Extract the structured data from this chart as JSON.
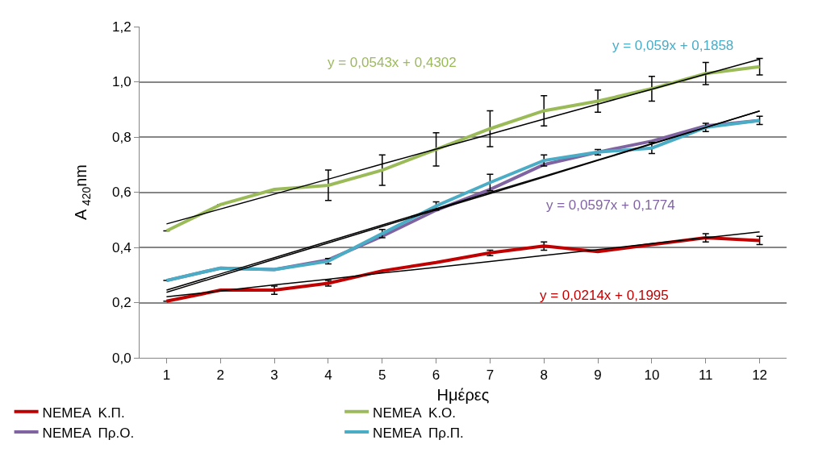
{
  "chart_data": {
    "type": "line",
    "xlabel": "Ημέρες",
    "ylabel": "A $_{420}$nm",
    "x": [
      1,
      2,
      3,
      4,
      5,
      6,
      7,
      8,
      9,
      10,
      11,
      12
    ],
    "xlim": [
      0.5,
      12.5
    ],
    "xticks": [
      1,
      2,
      3,
      4,
      5,
      6,
      7,
      8,
      9,
      10,
      11,
      12
    ],
    "ylim": [
      0,
      1.2
    ],
    "yticks": [
      {
        "value": 0,
        "label": "0,0"
      },
      {
        "value": 0.2,
        "label": "0,2"
      },
      {
        "value": 0.4,
        "label": "0,4"
      },
      {
        "value": 0.6,
        "label": "0,6"
      },
      {
        "value": 0.8,
        "label": "0,8"
      },
      {
        "value": 1.0,
        "label": "1,0"
      },
      {
        "value": 1.2,
        "label": "1,2"
      }
    ],
    "grid": "y",
    "legend": "bottom left",
    "series": [
      {
        "name": "NEMEA  Κ.Π.",
        "color": "#c00000",
        "values": [
          0.205,
          0.245,
          0.245,
          0.27,
          0.315,
          0.345,
          0.38,
          0.405,
          0.385,
          0.41,
          0.435,
          0.425
        ],
        "errors": [
          null,
          null,
          0.015,
          0.01,
          null,
          null,
          0.01,
          0.015,
          null,
          null,
          0.015,
          0.015
        ]
      },
      {
        "name": "NEMEA  Κ.Ο.",
        "color": "#9bbb59",
        "values": [
          0.46,
          0.555,
          0.61,
          0.625,
          0.68,
          0.755,
          0.83,
          0.895,
          0.93,
          0.975,
          1.03,
          1.055
        ],
        "errors": [
          null,
          null,
          null,
          0.055,
          0.055,
          0.06,
          0.065,
          0.055,
          0.04,
          0.045,
          0.04,
          0.03
        ]
      },
      {
        "name": "NEMEA  Πρ.Ο.",
        "color": "#8064a2",
        "values": [
          0.28,
          0.325,
          0.32,
          0.355,
          0.44,
          0.535,
          0.61,
          0.7,
          0.745,
          0.785,
          0.84,
          0.86
        ]
      },
      {
        "name": "NEMEA  Πρ.Π.",
        "color": "#4bacc6",
        "values": [
          0.28,
          0.325,
          0.32,
          0.35,
          0.45,
          0.55,
          0.635,
          0.715,
          0.745,
          0.76,
          0.835,
          0.86
        ],
        "errors": [
          null,
          null,
          null,
          0.01,
          0.015,
          0.015,
          0.03,
          0.02,
          0.01,
          0.02,
          0.015,
          0.015
        ]
      },
      {
        "type": "line",
        "color": "#000000",
        "values": [
          0.221,
          0.242,
          0.264,
          0.285,
          0.307,
          0.328,
          0.349,
          0.371,
          0.392,
          0.414,
          0.435,
          0.456
        ]
      },
      {
        "type": "line",
        "color": "#000000",
        "values": [
          0.485,
          0.539,
          0.593,
          0.647,
          0.702,
          0.756,
          0.81,
          0.865,
          0.919,
          0.973,
          1.028,
          1.082
        ]
      },
      {
        "type": "line",
        "color": "#000000",
        "values": [
          0.237,
          0.297,
          0.357,
          0.416,
          0.476,
          0.536,
          0.595,
          0.655,
          0.715,
          0.774,
          0.834,
          0.894
        ]
      },
      {
        "type": "line",
        "color": "#000000",
        "values": [
          0.245,
          0.304,
          0.363,
          0.422,
          0.481,
          0.54,
          0.599,
          0.658,
          0.717,
          0.776,
          0.835,
          0.894
        ]
      }
    ],
    "annotations": [
      "y = 0,0214x + 0,1995",
      "y = 0,0543x + 0,4302",
      "y = 0,0597x + 0,1774",
      "y = 0,059x + 0,1858"
    ]
  }
}
